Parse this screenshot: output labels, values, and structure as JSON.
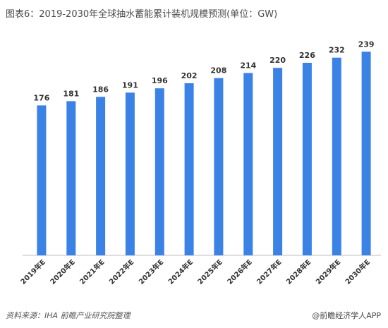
{
  "title": "图表6：2019-2030年全球抽水蓄能累计装机规模预测(单位：GW)",
  "source": "资料来源：IHA 前瞻产业研究院整理",
  "brand": "@前瞻经济学人APP",
  "colors": {
    "bar": "#3b82e6",
    "axis": "#bdbdbd",
    "text": "#333333"
  },
  "chart_data": {
    "type": "bar",
    "categories": [
      "2019年E",
      "2020年E",
      "2021年E",
      "2022年E",
      "2023年E",
      "2024年E",
      "2025年E",
      "2026年E",
      "2027年E",
      "2028年E",
      "2029年E",
      "2030年E"
    ],
    "values": [
      176,
      181,
      186,
      191,
      196,
      202,
      208,
      214,
      220,
      226,
      232,
      239
    ],
    "ylim": [
      0,
      250
    ],
    "grid": false,
    "data_labels": true
  }
}
